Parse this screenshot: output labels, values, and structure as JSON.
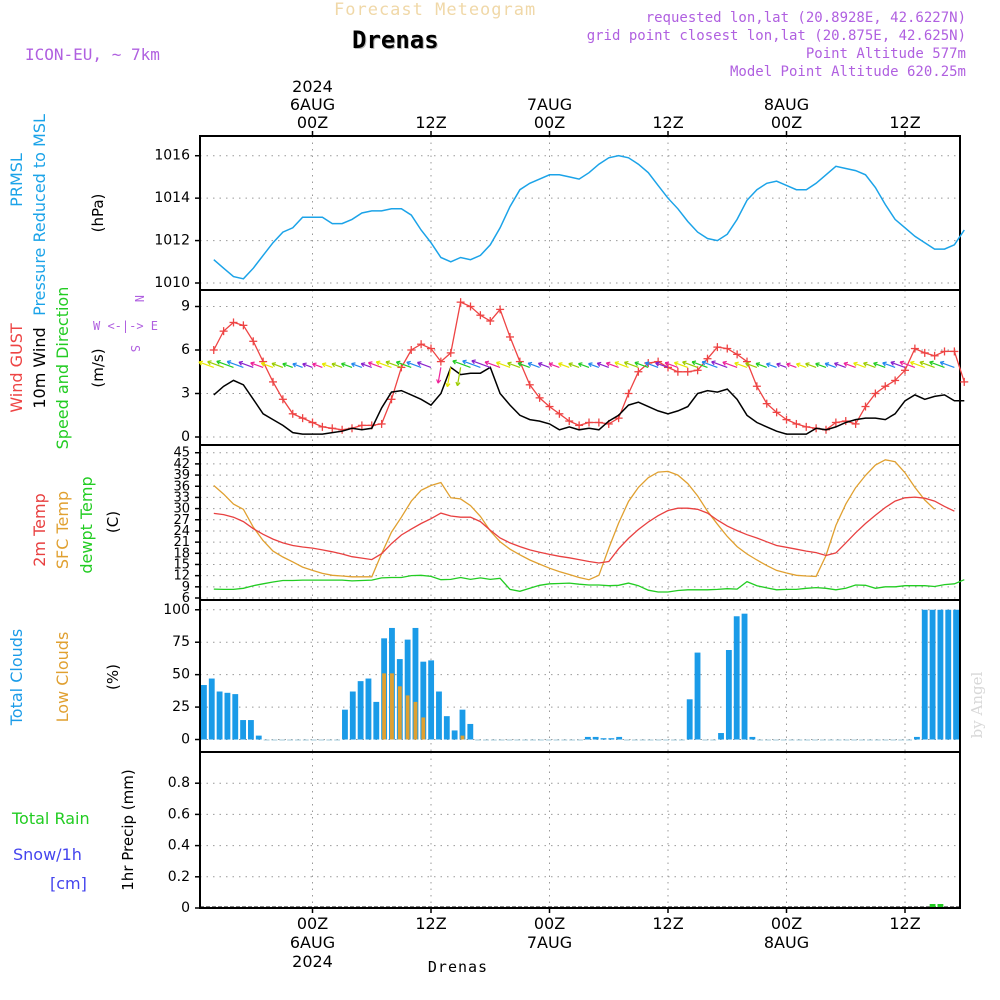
{
  "header": {
    "subtitle": "Forecast Meteogram",
    "title": "Drenas",
    "model": "ICON-EU, ~ 7km",
    "info_lines": [
      "requested lon,lat (20.8928E, 42.6227N)",
      "grid point closest lon,lat (20.875E, 42.625N)",
      "Point Altitude 577m",
      "Model Point Altitude 620.25m"
    ],
    "footer_label": "Drenas",
    "watermark": "by Angel"
  },
  "colors": {
    "pressure": "#1ba3e8",
    "gust": "#ee4444",
    "wind": "#000000",
    "direction": "#22cc22",
    "temp": "#e84040",
    "sfc_temp": "#e0a030",
    "dewpt": "#22cc22",
    "total_clouds": "#1a9be8",
    "low_clouds": "#e0a030",
    "rain": "#22cc22",
    "snow": "#4444ee",
    "compass": "#b060e0"
  },
  "time_axis": {
    "hours_start_offset": 0,
    "hours_total": 64,
    "top_ticks": [
      {
        "hour": 10,
        "lines": [
          "2024",
          "6AUG",
          "00Z"
        ]
      },
      {
        "hour": 22,
        "lines": [
          "12Z"
        ]
      },
      {
        "hour": 34,
        "lines": [
          "7AUG",
          "00Z"
        ]
      },
      {
        "hour": 46,
        "lines": [
          "12Z"
        ]
      },
      {
        "hour": 58,
        "lines": [
          "8AUG",
          "00Z"
        ]
      },
      {
        "hour": 70,
        "lines": [
          "12Z"
        ]
      }
    ],
    "bottom_ticks": [
      {
        "hour": 10,
        "lines": [
          "00Z",
          "6AUG",
          "2024"
        ]
      },
      {
        "hour": 22,
        "lines": [
          "12Z"
        ]
      },
      {
        "hour": 34,
        "lines": [
          "00Z",
          "7AUG"
        ]
      },
      {
        "hour": 46,
        "lines": [
          "12Z"
        ]
      },
      {
        "hour": 58,
        "lines": [
          "00Z",
          "8AUG"
        ]
      },
      {
        "hour": 70,
        "lines": [
          "12Z"
        ]
      }
    ]
  },
  "chart_data": [
    {
      "type": "line",
      "id": "pressure",
      "title": "PRMSL Pressure Reduced to MSL",
      "label_lines": [
        "PRMSL",
        "Pressure Reduced to MSL"
      ],
      "unit": "(hPa)",
      "ylim": [
        1010,
        1016.6
      ],
      "yticks": [
        1010,
        1012,
        1014,
        1016
      ],
      "series": [
        {
          "name": "PRMSL",
          "values": [
            1011.1,
            1010.7,
            1010.3,
            1010.2,
            1010.7,
            1011.3,
            1011.9,
            1012.4,
            1012.6,
            1013.1,
            1013.1,
            1013.1,
            1012.8,
            1012.8,
            1013.0,
            1013.3,
            1013.4,
            1013.4,
            1013.5,
            1013.5,
            1013.2,
            1012.5,
            1011.9,
            1011.2,
            1011.0,
            1011.2,
            1011.1,
            1011.3,
            1011.8,
            1012.6,
            1013.6,
            1014.4,
            1014.7,
            1014.9,
            1015.1,
            1015.1,
            1015.0,
            1014.9,
            1015.2,
            1015.6,
            1015.9,
            1016.0,
            1015.9,
            1015.6,
            1015.2,
            1014.6,
            1014.0,
            1013.5,
            1012.9,
            1012.4,
            1012.1,
            1012.0,
            1012.3,
            1013.0,
            1013.9,
            1014.4,
            1014.7,
            1014.8,
            1014.6,
            1014.4,
            1014.4,
            1014.7,
            1015.1,
            1015.5,
            1015.4,
            1015.3,
            1015.1,
            1014.5,
            1013.7,
            1013.0,
            1012.6,
            1012.2,
            1011.9,
            1011.6,
            1011.6,
            1011.8,
            1012.5
          ]
        }
      ]
    },
    {
      "type": "line",
      "id": "wind",
      "label_groups": [
        {
          "text": "Wind GUST",
          "color_key": "gust"
        },
        {
          "text": "10m Wind",
          "color_key": "wind"
        },
        {
          "text": "Speed and Direction",
          "color_key": "direction"
        }
      ],
      "unit": "(m/s)",
      "compass": [
        "N",
        "W <-|-> E",
        "S"
      ],
      "ylim": [
        0,
        10
      ],
      "yticks": [
        0,
        3,
        6,
        9
      ],
      "series": [
        {
          "name": "Wind GUST",
          "values": [
            6.0,
            7.3,
            7.9,
            7.7,
            6.6,
            5.2,
            3.8,
            2.6,
            1.6,
            1.3,
            1.0,
            0.7,
            0.6,
            0.5,
            0.6,
            0.8,
            0.8,
            0.9,
            2.6,
            4.8,
            6.0,
            6.4,
            6.1,
            5.2,
            5.8,
            9.3,
            9.0,
            8.4,
            8.0,
            8.8,
            6.9,
            5.2,
            3.6,
            2.7,
            2.1,
            1.6,
            1.1,
            0.8,
            1.0,
            1.0,
            0.9,
            1.3,
            3.0,
            4.5,
            5.1,
            5.2,
            4.8,
            4.5,
            4.5,
            4.6,
            5.4,
            6.2,
            6.1,
            5.7,
            5.2,
            3.5,
            2.3,
            1.7,
            1.2,
            0.9,
            0.7,
            0.6,
            0.5,
            1.0,
            1.1,
            0.9,
            2.1,
            3.0,
            3.5,
            3.9,
            4.6,
            6.1,
            5.8,
            5.6,
            5.9,
            5.9,
            3.8
          ]
        },
        {
          "name": "10m Wind",
          "values": [
            2.9,
            3.5,
            3.9,
            3.6,
            2.6,
            1.6,
            1.2,
            0.8,
            0.3,
            0.2,
            0.2,
            0.2,
            0.3,
            0.4,
            0.6,
            0.5,
            0.6,
            2.0,
            3.1,
            3.2,
            2.9,
            2.6,
            2.2,
            3.0,
            4.8,
            4.3,
            4.4,
            4.4,
            4.8,
            3.0,
            2.2,
            1.5,
            1.2,
            1.1,
            0.9,
            0.5,
            0.7,
            0.5,
            0.6,
            0.5,
            1.1,
            1.5,
            2.2,
            2.4,
            2.1,
            1.8,
            1.6,
            1.8,
            2.1,
            3.0,
            3.2,
            3.1,
            3.3,
            2.6,
            1.5,
            1.0,
            0.7,
            0.4,
            0.2,
            0.2,
            0.2,
            0.6,
            0.5,
            0.7,
            1.0,
            1.2,
            1.3,
            1.3,
            1.2,
            1.6,
            2.5,
            2.9,
            2.6,
            2.8,
            2.9,
            2.5,
            2.5
          ]
        }
      ],
      "direction_arrows_hours": [
        0,
        2,
        4,
        6,
        8,
        10,
        12,
        14,
        16,
        18,
        20,
        22,
        24,
        25,
        26,
        28,
        30,
        32,
        34,
        36,
        38,
        40,
        42,
        44,
        46,
        48,
        50,
        52,
        54,
        56,
        58,
        60,
        62,
        64,
        66,
        68,
        70,
        72,
        74,
        76
      ]
    },
    {
      "type": "line",
      "id": "temperature",
      "label_groups": [
        {
          "text": "2m Temp",
          "color_key": "temp"
        },
        {
          "text": "SFC Temp",
          "color_key": "sfc_temp"
        },
        {
          "text": "dewpt Temp",
          "color_key": "dewpt"
        }
      ],
      "unit": "(C)",
      "ylim": [
        6,
        46
      ],
      "yticks": [
        6,
        9,
        12,
        15,
        18,
        21,
        24,
        27,
        30,
        33,
        36,
        39,
        42,
        45
      ],
      "series": [
        {
          "name": "2m Temp",
          "values": [
            28.7,
            28.4,
            27.7,
            26.5,
            24.6,
            23.1,
            21.8,
            20.8,
            20.1,
            19.7,
            19.4,
            18.9,
            18.4,
            17.8,
            17.1,
            16.7,
            16.3,
            17.9,
            20.6,
            22.9,
            24.5,
            26.0,
            27.3,
            28.8,
            28.0,
            27.7,
            27.7,
            26.5,
            24.2,
            22.1,
            20.8,
            19.8,
            18.9,
            18.3,
            17.7,
            17.2,
            16.8,
            16.3,
            15.8,
            15.4,
            15.8,
            19.2,
            22.0,
            24.4,
            26.4,
            28.1,
            29.5,
            30.1,
            30.1,
            29.8,
            28.8,
            26.9,
            25.3,
            24.1,
            23.0,
            22.1,
            21.1,
            20.1,
            19.6,
            19.1,
            18.6,
            18.2,
            17.4,
            18.1,
            20.8,
            23.5,
            26.0,
            28.2,
            30.3,
            32.0,
            32.9,
            33.1,
            32.8,
            32.0,
            30.6,
            29.3
          ]
        },
        {
          "name": "SFC Temp",
          "values": [
            36.2,
            33.9,
            31.2,
            29.8,
            25.0,
            21.4,
            18.6,
            17.0,
            15.7,
            14.3,
            13.4,
            12.6,
            12.1,
            11.9,
            11.7,
            11.7,
            11.7,
            17.9,
            23.7,
            27.7,
            32.0,
            34.9,
            36.2,
            37.0,
            32.9,
            32.6,
            30.8,
            27.9,
            24.0,
            21.1,
            19.1,
            17.6,
            16.2,
            15.1,
            14.0,
            13.1,
            12.3,
            11.5,
            10.9,
            12.1,
            19.4,
            26.1,
            31.9,
            35.7,
            38.3,
            39.8,
            40.0,
            39.0,
            36.7,
            33.4,
            29.3,
            25.8,
            22.5,
            19.8,
            17.8,
            16.2,
            14.7,
            13.4,
            12.7,
            12.1,
            11.9,
            11.8,
            17.4,
            25.5,
            31.2,
            35.6,
            38.9,
            41.7,
            43.1,
            42.6,
            39.6,
            35.7,
            32.3,
            29.8
          ]
        },
        {
          "name": "dewpt Temp",
          "values": [
            8.4,
            8.3,
            8.3,
            8.6,
            9.3,
            9.8,
            10.3,
            10.7,
            10.7,
            10.8,
            10.8,
            10.8,
            10.8,
            10.8,
            10.6,
            10.7,
            10.8,
            11.4,
            11.5,
            11.5,
            12.0,
            12.1,
            11.8,
            10.9,
            11.0,
            11.5,
            11.0,
            11.4,
            11.0,
            11.3,
            8.3,
            7.8,
            8.6,
            9.4,
            9.8,
            9.9,
            10.0,
            9.7,
            9.5,
            9.5,
            9.3,
            9.4,
            10.0,
            9.3,
            8.1,
            7.6,
            7.6,
            8.0,
            8.2,
            8.2,
            8.2,
            8.3,
            8.5,
            8.4,
            10.4,
            9.3,
            8.7,
            8.2,
            8.3,
            8.3,
            8.6,
            8.8,
            8.6,
            8.2,
            8.6,
            9.5,
            9.4,
            8.6,
            9.0,
            9.0,
            9.3,
            9.3,
            9.3,
            9.1,
            9.6,
            9.8,
            10.9
          ]
        }
      ]
    },
    {
      "type": "bar",
      "id": "clouds",
      "label_groups": [
        {
          "text": "Total Clouds",
          "color_key": "total_clouds"
        },
        {
          "text": "Low Clouds",
          "color_key": "low_clouds"
        }
      ],
      "unit": "(%)",
      "ylim": [
        -5,
        106
      ],
      "yticks": [
        0,
        25,
        50,
        75,
        100
      ],
      "series": [
        {
          "name": "Total Clouds",
          "values": [
            42,
            47,
            37,
            36,
            35,
            15,
            15,
            3,
            0,
            0,
            0,
            0,
            0,
            0,
            0,
            0,
            0,
            0,
            23,
            37,
            45,
            47,
            29,
            78,
            86,
            62,
            77,
            86,
            60,
            61,
            37,
            18,
            7,
            23,
            12,
            0,
            0,
            0,
            0,
            0,
            0,
            0,
            0,
            0,
            0,
            0,
            0,
            0,
            0,
            2,
            2,
            1,
            1,
            2,
            0,
            0,
            0,
            0,
            0,
            0,
            0,
            0,
            31,
            67,
            0,
            0,
            5,
            69,
            95,
            97,
            2,
            0,
            0,
            0,
            0,
            0,
            0,
            0,
            0,
            0,
            0,
            0,
            0,
            0,
            0,
            0,
            0,
            0,
            0,
            0,
            0,
            2,
            100,
            100,
            100,
            100,
            100
          ]
        },
        {
          "name": "Low Clouds",
          "values": [
            0,
            0,
            0,
            0,
            0,
            0,
            0,
            0,
            0,
            0,
            0,
            0,
            0,
            0,
            0,
            0,
            0,
            0,
            0,
            0,
            0,
            0,
            0,
            51,
            51,
            41,
            34,
            29,
            17,
            0,
            0,
            0,
            0,
            3,
            0,
            0,
            0,
            0,
            0,
            0,
            0,
            0,
            0,
            0,
            0,
            0,
            0,
            0,
            0,
            0,
            0,
            0,
            0,
            0,
            0,
            0,
            0,
            0,
            0,
            0,
            0,
            0,
            0,
            0,
            0,
            0,
            0,
            0,
            0,
            0,
            0,
            0,
            0,
            0,
            0,
            0,
            0,
            0,
            0,
            0,
            0,
            0,
            0,
            0,
            0,
            0,
            0,
            0,
            0,
            0,
            0,
            0,
            0,
            0,
            0,
            0,
            0
          ]
        }
      ]
    },
    {
      "type": "bar",
      "id": "precip",
      "label_groups": [
        {
          "text": "Total  Rain",
          "color_key": "rain"
        },
        {
          "text": "Snow/1h",
          "color_key": "snow"
        },
        {
          "text": "[cm]",
          "color_key": "snow"
        }
      ],
      "unit": "1hr Precip (mm)",
      "ylim": [
        0,
        1.0
      ],
      "yticks": [
        0,
        0.2,
        0.4,
        0.6,
        0.8
      ],
      "series": [
        {
          "name": "Total Rain",
          "values": [
            0,
            0,
            0,
            0,
            0,
            0,
            0,
            0,
            0,
            0,
            0,
            0,
            0,
            0,
            0,
            0,
            0,
            0,
            0,
            0,
            0,
            0,
            0,
            0,
            0,
            0,
            0,
            0,
            0,
            0,
            0,
            0,
            0,
            0,
            0,
            0,
            0,
            0,
            0,
            0,
            0,
            0,
            0,
            0,
            0,
            0,
            0,
            0,
            0,
            0,
            0,
            0,
            0,
            0,
            0,
            0,
            0,
            0,
            0,
            0,
            0,
            0,
            0,
            0,
            0,
            0,
            0,
            0,
            0,
            0,
            0,
            0,
            0,
            0,
            0,
            0,
            0,
            0,
            0,
            0,
            0,
            0,
            0,
            0,
            0,
            0,
            0,
            0,
            0,
            0,
            0,
            0,
            0,
            0.01,
            0.01,
            0,
            0
          ]
        }
      ]
    }
  ]
}
